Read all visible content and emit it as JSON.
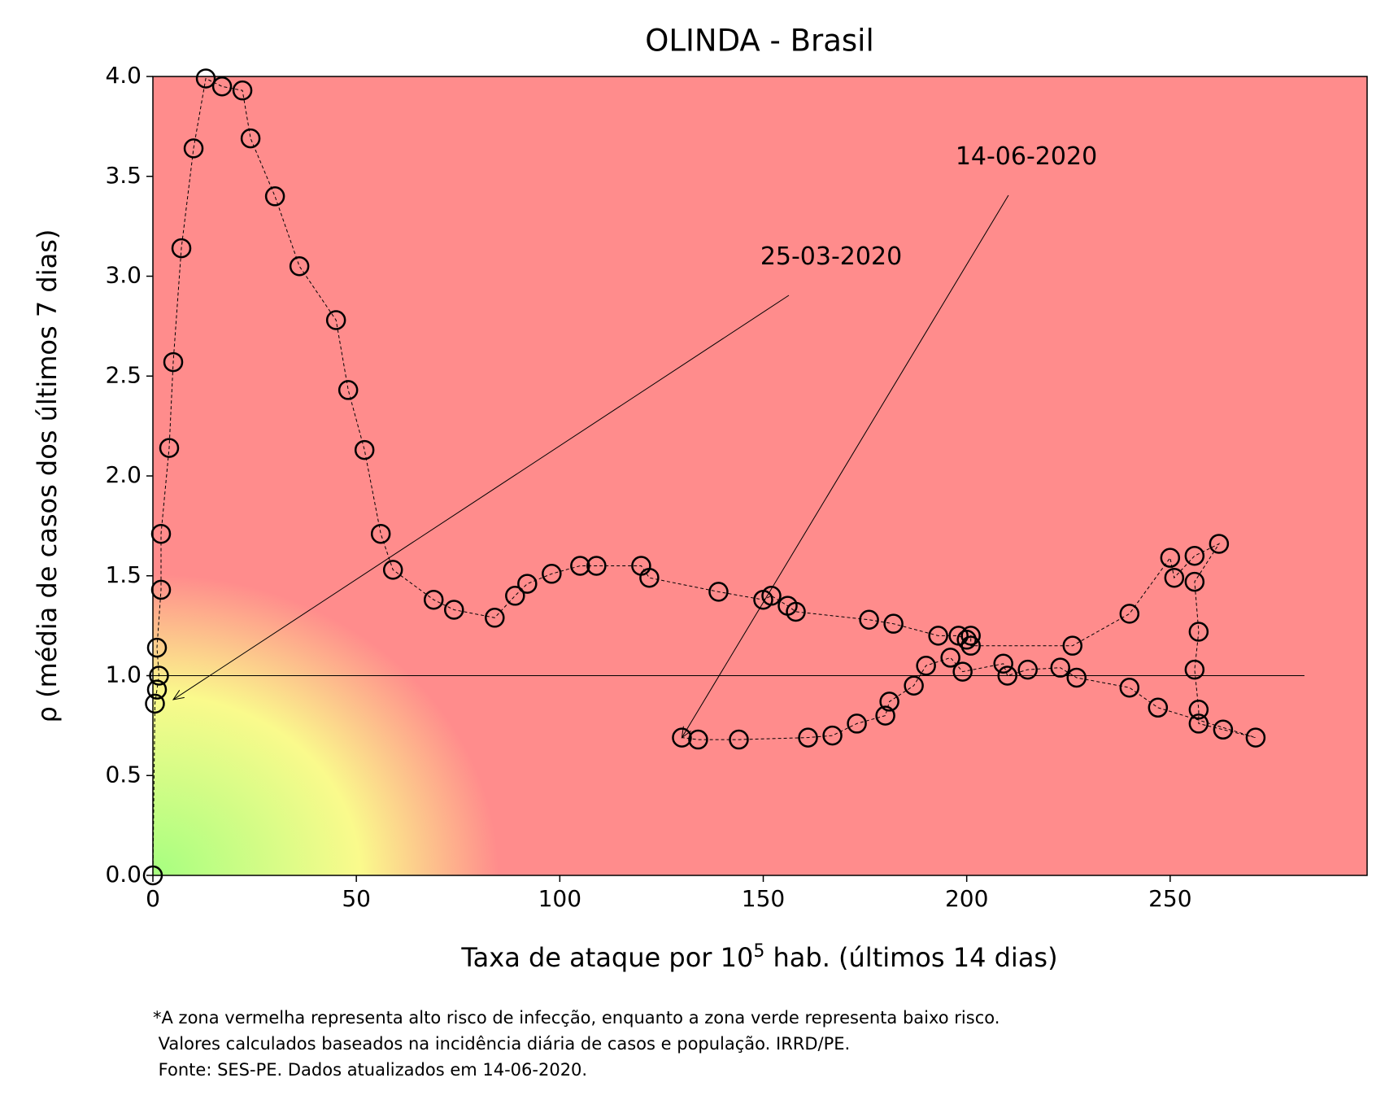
{
  "chart_data": {
    "type": "scatter",
    "title": "OLINDA - Brasil",
    "x_label": [
      "Taxa de ataque por 10",
      "5",
      " hab. (últimos 14 dias)"
    ],
    "y_label": "ρ (média de casos dos últimos 7 dias)",
    "footnote": [
      "*A zona vermelha representa alto risco de infecção, enquanto a zona verde representa baixo risco.",
      " Valores calculados baseados na incidência diária de casos e população. IRRD/PE.",
      " Fonte: SES-PE. Dados atualizados em 14-06-2020."
    ],
    "xlim": [
      0,
      298.4
    ],
    "ylim": [
      0,
      4
    ],
    "xticks": [
      0,
      50,
      100,
      150,
      200,
      250
    ],
    "yticks": [
      {
        "value": 0,
        "label": "0.0"
      },
      0.5,
      {
        "value": 1,
        "label": "1.0"
      },
      1.5,
      {
        "value": 2,
        "label": "2.0"
      },
      2.5,
      {
        "value": 3,
        "label": "3.0"
      },
      3.5,
      {
        "value": 4,
        "label": "4.0"
      }
    ],
    "hline": {
      "y": 1,
      "xmax": 283
    },
    "annotations": [
      {
        "text": "25-03-2020",
        "x": 5,
        "y": 0.88
      },
      {
        "text": "14-06-2020",
        "x": 130,
        "y": 0.69
      }
    ],
    "series": [
      {
        "color": "#000000",
        "x": [
          0,
          0.5,
          1,
          1.5,
          1,
          2,
          2,
          4,
          5,
          7,
          10,
          13,
          17,
          22,
          24,
          30,
          36,
          45,
          48,
          52,
          56,
          59,
          69,
          74,
          84,
          89,
          92,
          98,
          105,
          109,
          120,
          122,
          139,
          150,
          152,
          156,
          158,
          176,
          182,
          193,
          198,
          200,
          201,
          201,
          226,
          240,
          250,
          251,
          256,
          262,
          256,
          257,
          256,
          257,
          257,
          263,
          271,
          247,
          240,
          227,
          223,
          215,
          210,
          209,
          199,
          196,
          190,
          187,
          181,
          180,
          173,
          167,
          161,
          144,
          134,
          130
        ],
        "y": [
          0,
          0.86,
          0.93,
          1.0,
          1.14,
          1.43,
          1.71,
          2.14,
          2.57,
          3.14,
          3.64,
          3.99,
          3.95,
          3.93,
          3.69,
          3.4,
          3.05,
          2.78,
          2.43,
          2.13,
          1.71,
          1.53,
          1.38,
          1.33,
          1.29,
          1.4,
          1.46,
          1.51,
          1.55,
          1.55,
          1.55,
          1.49,
          1.42,
          1.38,
          1.4,
          1.35,
          1.32,
          1.28,
          1.26,
          1.2,
          1.2,
          1.18,
          1.2,
          1.15,
          1.15,
          1.31,
          1.59,
          1.49,
          1.6,
          1.66,
          1.47,
          1.22,
          1.03,
          0.83,
          0.76,
          0.73,
          0.69,
          0.84,
          0.94,
          0.99,
          1.04,
          1.03,
          1.0,
          1.06,
          1.02,
          1.09,
          1.05,
          0.95,
          0.87,
          0.8,
          0.76,
          0.7,
          0.69,
          0.68,
          0.68,
          0.69
        ]
      }
    ]
  }
}
